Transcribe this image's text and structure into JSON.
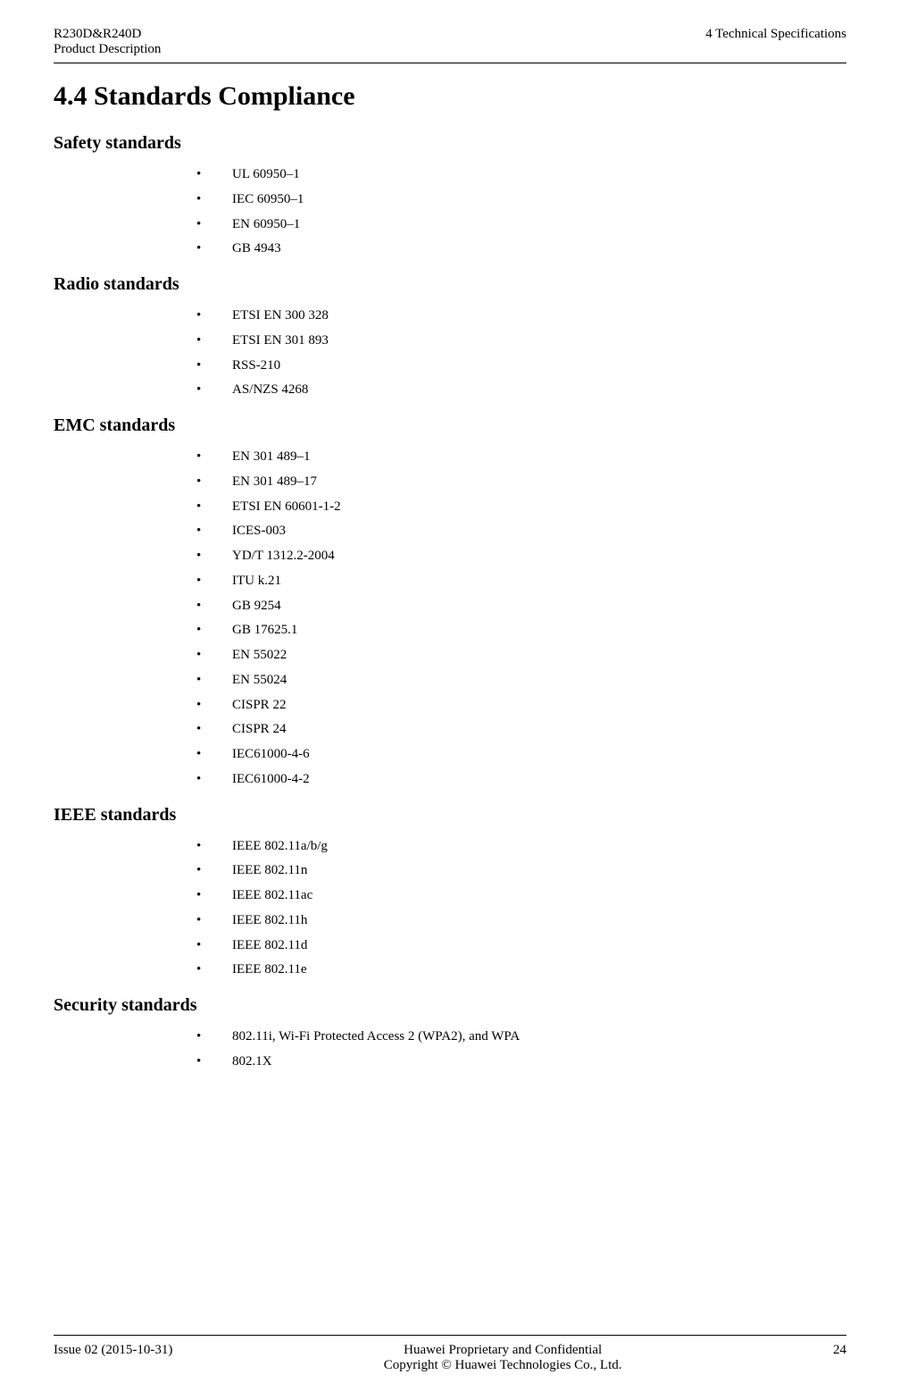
{
  "header": {
    "left_line1": "R230D&R240D",
    "left_line2": "Product Description",
    "right": "4 Technical Specifications"
  },
  "main_title": "4.4 Standards Compliance",
  "sections": [
    {
      "title": "Safety standards",
      "items": [
        "UL 60950–1",
        "IEC 60950–1",
        "EN 60950–1",
        "GB 4943"
      ]
    },
    {
      "title": "Radio standards",
      "items": [
        "ETSI EN 300 328",
        "ETSI EN 301 893",
        "RSS-210",
        "AS/NZS 4268"
      ]
    },
    {
      "title": "EMC standards",
      "items": [
        "EN 301 489–1",
        "EN 301 489–17",
        "ETSI EN 60601-1-2",
        "ICES-003",
        "YD/T 1312.2-2004",
        "ITU k.21",
        "GB 9254",
        "GB 17625.1",
        "EN 55022",
        "EN 55024",
        "CISPR 22",
        "CISPR 24",
        "IEC61000-4-6",
        "IEC61000-4-2"
      ]
    },
    {
      "title": "IEEE standards",
      "items": [
        "IEEE 802.11a/b/g",
        "IEEE 802.11n",
        "IEEE 802.11ac",
        "IEEE 802.11h",
        "IEEE 802.11d",
        "IEEE 802.11e"
      ]
    },
    {
      "title": "Security standards",
      "items": [
        "802.11i, Wi-Fi Protected Access 2 (WPA2), and WPA",
        "802.1X"
      ]
    }
  ],
  "footer": {
    "issue": "Issue 02 (2015-10-31)",
    "center_line1": "Huawei Proprietary and Confidential",
    "center_line2": "Copyright © Huawei Technologies Co., Ltd.",
    "page": "24"
  }
}
